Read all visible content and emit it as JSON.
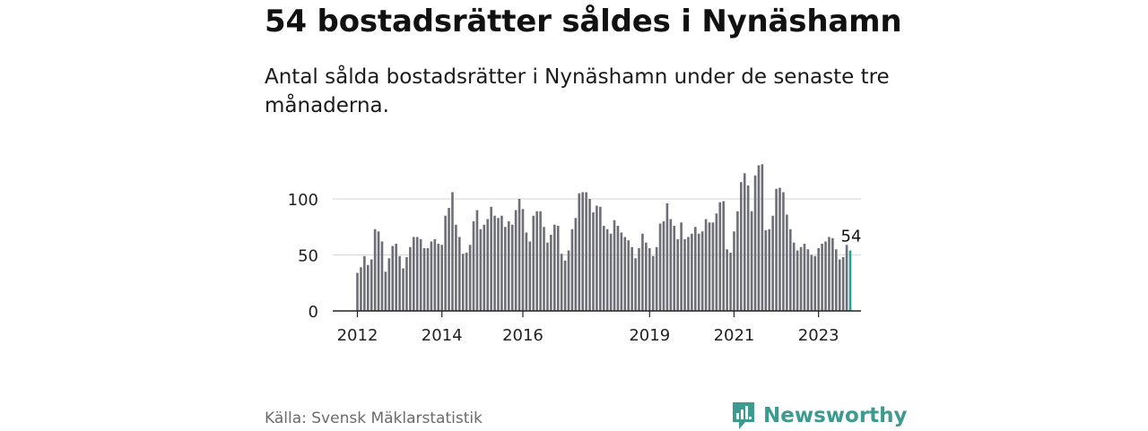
{
  "header": {
    "title": "54 bostadsrätter såldes i Nynäshamn",
    "subtitle": "Antal sålda bostadsrätter i Nynäshamn under de senaste tre månaderna."
  },
  "footer": {
    "source": "Källa: Svensk Mäklarstatistik",
    "brand": "Newsworthy",
    "brand_color": "#3d9a8f"
  },
  "chart_data": {
    "type": "bar",
    "x_tick_labels": [
      "2012",
      "2014",
      "2016",
      "2019",
      "2021",
      "2023"
    ],
    "x_tick_index": [
      0,
      24,
      47,
      83,
      107,
      131
    ],
    "y_ticks": [
      0,
      50,
      100
    ],
    "ylim": [
      0,
      130
    ],
    "grid": true,
    "highlight_label": "54",
    "bar_color": "#6e6e76",
    "highlight_color": "#2aa198",
    "values": [
      34,
      39,
      49,
      41,
      46,
      73,
      71,
      62,
      35,
      47,
      58,
      60,
      49,
      38,
      48,
      57,
      66,
      66,
      64,
      56,
      56,
      62,
      64,
      60,
      59,
      85,
      92,
      106,
      77,
      66,
      51,
      52,
      59,
      80,
      90,
      73,
      77,
      82,
      93,
      85,
      83,
      85,
      75,
      80,
      77,
      90,
      100,
      91,
      70,
      62,
      85,
      89,
      89,
      75,
      61,
      68,
      77,
      76,
      51,
      45,
      54,
      73,
      83,
      105,
      106,
      106,
      100,
      88,
      94,
      93,
      76,
      73,
      69,
      81,
      76,
      70,
      66,
      63,
      57,
      47,
      56,
      69,
      61,
      56,
      49,
      57,
      78,
      80,
      96,
      82,
      76,
      64,
      79,
      64,
      66,
      69,
      75,
      69,
      71,
      82,
      79,
      79,
      87,
      97,
      98,
      55,
      52,
      71,
      89,
      115,
      123,
      112,
      89,
      121,
      130,
      131,
      72,
      73,
      85,
      109,
      110,
      106,
      86,
      73,
      61,
      54,
      57,
      60,
      55,
      50,
      49,
      56,
      60,
      62,
      66,
      65,
      55,
      46,
      48,
      59,
      54
    ]
  }
}
